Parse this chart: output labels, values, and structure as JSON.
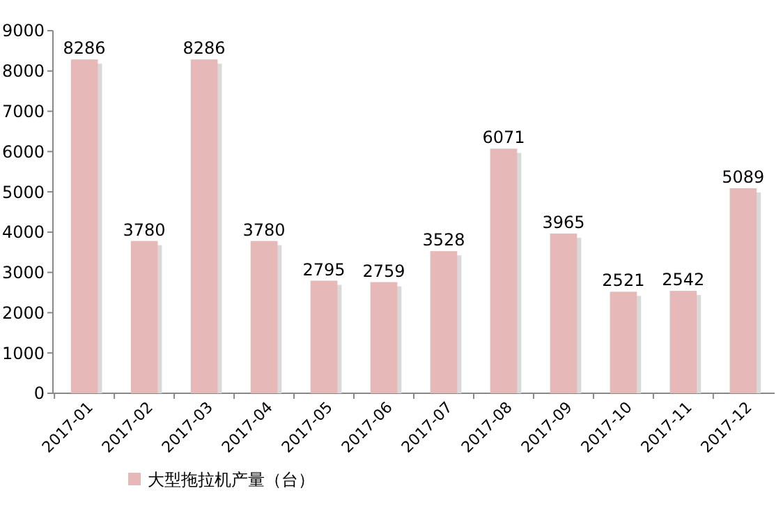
{
  "chart_data": {
    "type": "bar",
    "categories": [
      "2017-01",
      "2017-02",
      "2017-03",
      "2017-04",
      "2017-05",
      "2017-06",
      "2017-07",
      "2017-08",
      "2017-09",
      "2017-10",
      "2017-11",
      "2017-12"
    ],
    "series": [
      {
        "name": "大型拖拉机产量（台）",
        "color": "#e6b9b8",
        "values": [
          8286,
          3780,
          8286,
          3780,
          2795,
          2759,
          3528,
          6071,
          3965,
          2521,
          2542,
          5089
        ]
      }
    ],
    "ylim": [
      0,
      9000
    ],
    "yticks": [
      0,
      1000,
      2000,
      3000,
      4000,
      5000,
      6000,
      7000,
      8000,
      9000
    ],
    "data_labels": true,
    "legend": "bottom",
    "grid": false
  }
}
